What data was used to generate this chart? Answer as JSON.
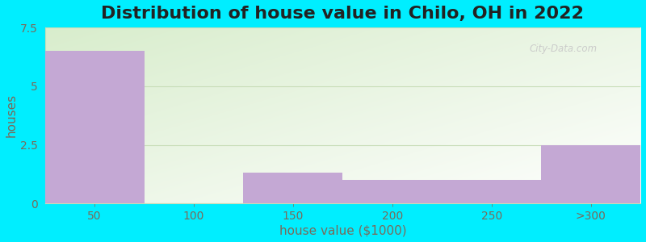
{
  "title": "Distribution of house value in Chilo, OH in 2022",
  "xlabel": "house value ($1000)",
  "ylabel": "houses",
  "categories": [
    "50",
    "100",
    "150",
    "200",
    "250",
    ">300"
  ],
  "values": [
    6.5,
    0,
    1.3,
    1.0,
    1.0,
    2.5
  ],
  "bar_color": "#c4a8d4",
  "bar_edge_color": "#c4a8d4",
  "figure_bg": "#00eeff",
  "ylim": [
    0,
    7.5
  ],
  "yticks": [
    0,
    2.5,
    5,
    7.5
  ],
  "title_fontsize": 16,
  "label_fontsize": 11,
  "tick_fontsize": 10,
  "tick_color": "#7a6a5a",
  "label_color": "#7a6a5a",
  "title_color": "#222222",
  "grid_color": "#c8ddb8",
  "watermark_text": "City-Data.com",
  "watermark_color": "#c8c8c8"
}
